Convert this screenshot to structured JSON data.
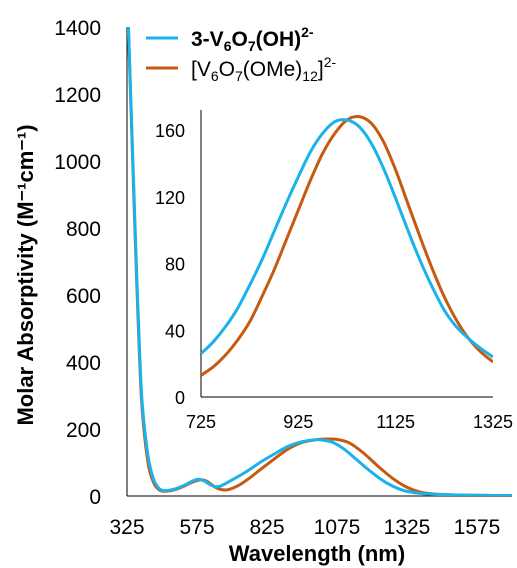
{
  "chart_data": [
    {
      "type": "line",
      "title": "",
      "xlabel": "Wavelength (nm)",
      "ylabel": "Molar Absorptivity (M⁻¹cm⁻¹)",
      "xlim": [
        325,
        1700
      ],
      "ylim": [
        0,
        1400
      ],
      "x_ticks": [
        "325",
        "575",
        "825",
        "1075",
        "1325",
        "1575"
      ],
      "y_ticks": [
        "0",
        "200",
        "400",
        "600",
        "800",
        "1000",
        "1200",
        "1400"
      ],
      "grid": false,
      "legend": "top-right",
      "series": [
        {
          "name": "3-V6O7(OH)2-",
          "label_parts": [
            "3-V",
            "6",
            "O",
            "7",
            "(OH)",
            "2-"
          ],
          "color": "#1ab2ea",
          "x": [
            330,
            340,
            350,
            360,
            370,
            380,
            400,
            420,
            440,
            460,
            480,
            500,
            530,
            560,
            580,
            600,
            620,
            640,
            660,
            700,
            750,
            800,
            850,
            900,
            950,
            1000,
            1030,
            1060,
            1100,
            1150,
            1200,
            1250,
            1300,
            1350,
            1400,
            1450,
            1500,
            1600,
            1700
          ],
          "y": [
            1400,
            1150,
            900,
            650,
            430,
            270,
            120,
            50,
            22,
            16,
            18,
            22,
            32,
            45,
            50,
            45,
            35,
            28,
            30,
            48,
            72,
            100,
            125,
            148,
            162,
            168,
            166,
            160,
            140,
            105,
            70,
            40,
            20,
            10,
            6,
            4,
            3,
            2,
            1
          ]
        },
        {
          "name": "[V6O7(OMe)12]2-",
          "label_parts": [
            "[V",
            "6",
            "O",
            "7",
            "(OMe)",
            "12",
            "]",
            "2-"
          ],
          "color": "#c55a11",
          "x": [
            330,
            340,
            350,
            360,
            370,
            380,
            400,
            420,
            440,
            460,
            480,
            500,
            530,
            560,
            590,
            610,
            630,
            650,
            680,
            720,
            760,
            800,
            850,
            900,
            950,
            1000,
            1050,
            1080,
            1120,
            1170,
            1220,
            1270,
            1320,
            1370,
            1420,
            1500,
            1600,
            1700
          ],
          "y": [
            1400,
            1140,
            880,
            630,
            410,
            250,
            100,
            40,
            18,
            14,
            16,
            20,
            30,
            42,
            48,
            44,
            32,
            22,
            18,
            30,
            52,
            78,
            110,
            140,
            160,
            168,
            170,
            168,
            158,
            128,
            90,
            55,
            28,
            12,
            6,
            3,
            2,
            1
          ]
        }
      ]
    },
    {
      "type": "line",
      "title": "",
      "xlabel": "",
      "ylabel": "",
      "xlim": [
        725,
        1325
      ],
      "ylim": [
        0,
        172
      ],
      "x_ticks": [
        "725",
        "925",
        "1125",
        "1325"
      ],
      "y_ticks": [
        "0",
        "40",
        "80",
        "120",
        "160"
      ],
      "grid": false,
      "series": [
        {
          "name": "3-V6O7(OH)2-",
          "color": "#1ab2ea",
          "x": [
            725,
            750,
            775,
            800,
            825,
            850,
            875,
            900,
            925,
            950,
            975,
            1000,
            1025,
            1050,
            1075,
            1100,
            1125,
            1150,
            1175,
            1200,
            1225,
            1250,
            1275,
            1300,
            1325
          ],
          "y": [
            26,
            33,
            42,
            53,
            67,
            82,
            99,
            116,
            132,
            147,
            158,
            165,
            166,
            162,
            152,
            137,
            119,
            100,
            82,
            66,
            52,
            42,
            35,
            29,
            24
          ]
        },
        {
          "name": "[V6O7(OMe)12]2-",
          "color": "#c55a11",
          "x": [
            725,
            750,
            775,
            800,
            825,
            850,
            875,
            900,
            925,
            950,
            975,
            1000,
            1025,
            1050,
            1075,
            1100,
            1125,
            1150,
            1175,
            1200,
            1225,
            1250,
            1275,
            1300,
            1325
          ],
          "y": [
            13,
            18,
            25,
            34,
            45,
            60,
            76,
            94,
            112,
            130,
            146,
            158,
            166,
            168,
            164,
            153,
            136,
            116,
            96,
            77,
            60,
            46,
            35,
            27,
            21
          ]
        }
      ]
    }
  ]
}
